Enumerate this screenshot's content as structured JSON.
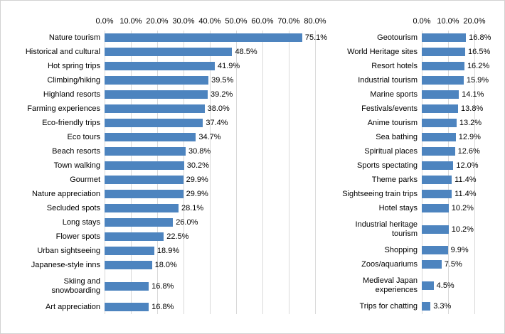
{
  "page": {
    "background": "#ffffff",
    "border_color": "#d2d2d2"
  },
  "colors": {
    "bar": "#4d84bf",
    "gridline": "#d9d9d9",
    "text": "#000000"
  },
  "chart_data": [
    {
      "type": "bar",
      "orientation": "horizontal",
      "grid": true,
      "x_ticks": [
        "0.0%",
        "10.0%",
        "20.0%",
        "30.0%",
        "40.0%",
        "50.0%",
        "60.0%",
        "70.0%",
        "80.0%"
      ],
      "xlim": [
        0,
        80
      ],
      "categories": [
        "Nature tourism",
        "Historical and cultural",
        "Hot spring trips",
        "Climbing/hiking",
        "Highland resorts",
        "Farming experiences",
        "Eco-friendly trips",
        "Eco tours",
        "Beach resorts",
        "Town walking",
        "Gourmet",
        "Nature appreciation",
        "Secluded spots",
        "Long stays",
        "Flower spots",
        "Urban sightseeing",
        "Japanese-style inns",
        "Skiing and\nsnowboarding",
        "Art appreciation"
      ],
      "values": [
        75.1,
        48.5,
        41.9,
        39.5,
        39.2,
        38.0,
        37.4,
        34.7,
        30.8,
        30.2,
        29.9,
        29.9,
        28.1,
        26.0,
        22.5,
        18.9,
        18.0,
        16.8,
        16.8
      ],
      "value_labels": [
        "75.1%",
        "48.5%",
        "41.9%",
        "39.5%",
        "39.2%",
        "38.0%",
        "37.4%",
        "34.7%",
        "30.8%",
        "30.2%",
        "29.9%",
        "29.9%",
        "28.1%",
        "26.0%",
        "22.5%",
        "18.9%",
        "18.0%",
        "16.8%",
        "16.8%"
      ]
    },
    {
      "type": "bar",
      "orientation": "horizontal",
      "grid": true,
      "x_ticks": [
        "0.0%",
        "10.0%",
        "20.0%"
      ],
      "xlim": [
        0,
        20
      ],
      "categories": [
        "Geotourism",
        "World Heritage sites",
        "Resort hotels",
        "Industrial tourism",
        "Marine sports",
        "Festivals/events",
        "Anime tourism",
        "Sea bathing",
        "Spiritual places",
        "Sports spectating",
        "Theme parks",
        "Sightseeing train trips",
        "Hotel stays",
        "Industrial heritage\ntourism",
        "Shopping",
        "Zoos/aquariums",
        "Medieval Japan\nexperiences",
        "Trips for chatting"
      ],
      "values": [
        16.8,
        16.5,
        16.2,
        15.9,
        14.1,
        13.8,
        13.2,
        12.9,
        12.6,
        12.0,
        11.4,
        11.4,
        10.2,
        10.2,
        9.9,
        7.5,
        4.5,
        3.3
      ],
      "value_labels": [
        "16.8%",
        "16.5%",
        "16.2%",
        "15.9%",
        "14.1%",
        "13.8%",
        "13.2%",
        "12.9%",
        "12.6%",
        "12.0%",
        "11.4%",
        "11.4%",
        "10.2%",
        "10.2%",
        "9.9%",
        "7.5%",
        "4.5%",
        "3.3%"
      ]
    }
  ]
}
